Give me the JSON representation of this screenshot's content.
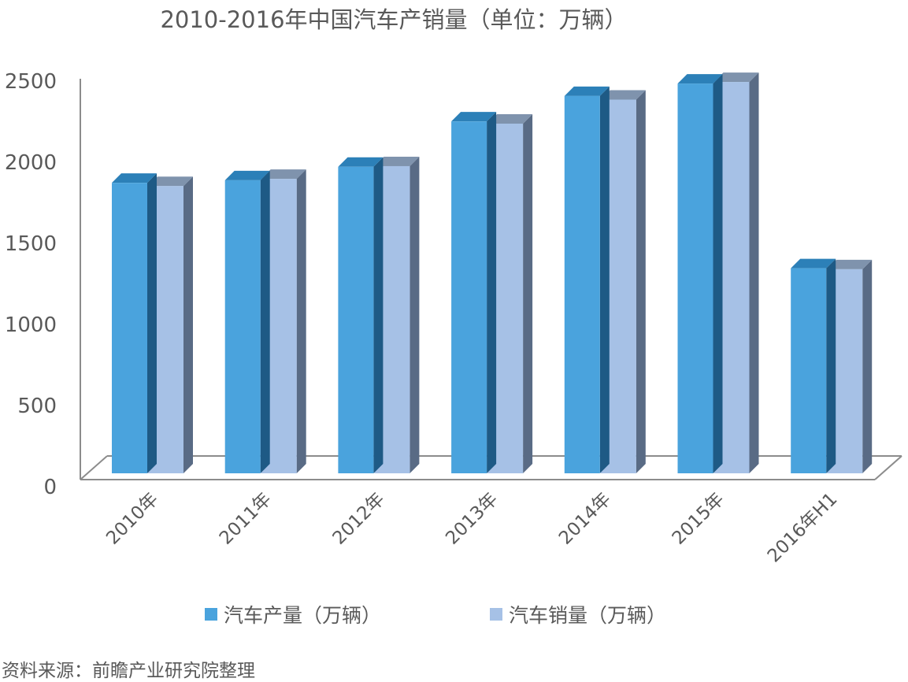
{
  "chart_data": {
    "type": "bar",
    "title": "2010-2016年中国汽车产销量（单位：万辆）",
    "categories": [
      "2010年",
      "2011年",
      "2012年",
      "2013年",
      "2014年",
      "2015年",
      "2016年H1"
    ],
    "series": [
      {
        "name": "汽车产量（万辆）",
        "values": [
          1826,
          1842,
          1927,
          2212,
          2372,
          2450,
          1289
        ]
      },
      {
        "name": "汽车销量（万辆）",
        "values": [
          1806,
          1851,
          1931,
          2198,
          2349,
          2460,
          1283
        ]
      }
    ],
    "yticks": [
      "0",
      "500",
      "1000",
      "1500",
      "2000",
      "2500"
    ],
    "ylim": [
      0,
      2500
    ],
    "xlabel": "",
    "ylabel": "",
    "legend_position": "bottom",
    "colors": {
      "production": "#4aa3dd",
      "production_side": "#1e5a85",
      "production_top": "#2c80b8",
      "sales": "#a6c1e6",
      "sales_side": "#596b85",
      "sales_top": "#7f93ad",
      "axis": "#8c8c8c"
    }
  },
  "source": "资料来源：前瞻产业研究院整理"
}
